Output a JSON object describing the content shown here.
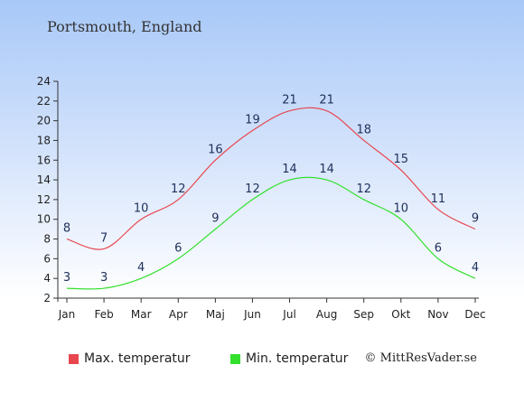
{
  "location": "Portsmouth, England",
  "legend": {
    "max_label": "Max. temperatur",
    "min_label": "Min. temperatur",
    "max_color": "#e8464f",
    "min_color": "#33e02e"
  },
  "credit": "© MittResVader.se",
  "chart_data": {
    "type": "line",
    "categories": [
      "Jan",
      "Feb",
      "Mar",
      "Apr",
      "Maj",
      "Jun",
      "Jul",
      "Aug",
      "Sep",
      "Okt",
      "Nov",
      "Dec"
    ],
    "series": [
      {
        "name": "Max. temperatur",
        "values": [
          8,
          7,
          10,
          12,
          16,
          19,
          21,
          21,
          18,
          15,
          11,
          9
        ]
      },
      {
        "name": "Min. temperatur",
        "values": [
          3,
          3,
          4,
          6,
          9,
          12,
          14,
          14,
          12,
          10,
          6,
          4
        ]
      }
    ],
    "ylim": [
      2,
      24
    ],
    "yticks": [
      2,
      4,
      6,
      8,
      10,
      12,
      14,
      16,
      18,
      20,
      22,
      24
    ],
    "grid": false,
    "legend_position": "bottom"
  }
}
